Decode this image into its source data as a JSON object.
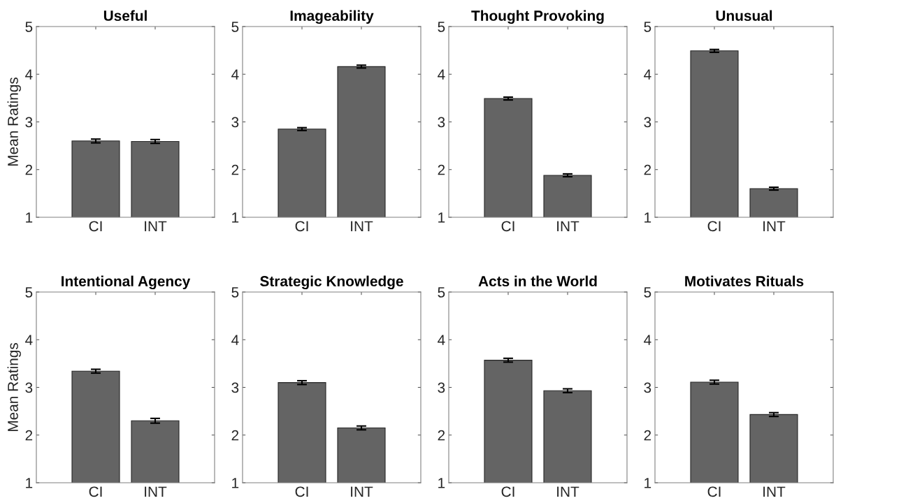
{
  "chart_data": [
    {
      "type": "bar",
      "title": "Useful",
      "ylabel": "Mean Ratings",
      "categories": [
        "CI",
        "INT"
      ],
      "values": [
        2.6,
        2.59
      ],
      "errors": [
        0.04,
        0.04
      ],
      "color": "#646464",
      "ylim": [
        1,
        5
      ],
      "yticks": [
        1,
        2,
        3,
        4,
        5
      ],
      "grid": false
    },
    {
      "type": "bar",
      "title": "Imageability",
      "categories": [
        "CI",
        "INT"
      ],
      "values": [
        2.85,
        4.16
      ],
      "errors": [
        0.03,
        0.03
      ],
      "color": "#646464",
      "ylim": [
        1,
        5
      ],
      "yticks": [
        1,
        2,
        3,
        4,
        5
      ],
      "grid": false
    },
    {
      "type": "bar",
      "title": "Thought Provoking",
      "categories": [
        "CI",
        "INT"
      ],
      "values": [
        3.49,
        1.88
      ],
      "errors": [
        0.03,
        0.03
      ],
      "color": "#646464",
      "ylim": [
        1,
        5
      ],
      "yticks": [
        1,
        2,
        3,
        4,
        5
      ],
      "grid": false
    },
    {
      "type": "bar",
      "title": "Unusual",
      "categories": [
        "CI",
        "INT"
      ],
      "values": [
        4.49,
        1.6
      ],
      "errors": [
        0.03,
        0.03
      ],
      "color": "#646464",
      "ylim": [
        1,
        5
      ],
      "yticks": [
        1,
        2,
        3,
        4,
        5
      ],
      "grid": false
    },
    {
      "type": "bar",
      "title": "Intentional Agency",
      "ylabel": "Mean Ratings",
      "categories": [
        "CI",
        "INT"
      ],
      "values": [
        3.34,
        2.3
      ],
      "errors": [
        0.04,
        0.05
      ],
      "color": "#646464",
      "ylim": [
        1,
        5
      ],
      "yticks": [
        1,
        2,
        3,
        4,
        5
      ],
      "grid": false
    },
    {
      "type": "bar",
      "title": "Strategic Knowledge",
      "categories": [
        "CI",
        "INT"
      ],
      "values": [
        3.1,
        2.15
      ],
      "errors": [
        0.04,
        0.04
      ],
      "color": "#646464",
      "ylim": [
        1,
        5
      ],
      "yticks": [
        1,
        2,
        3,
        4,
        5
      ],
      "grid": false
    },
    {
      "type": "bar",
      "title": "Acts in the World",
      "categories": [
        "CI",
        "INT"
      ],
      "values": [
        3.57,
        2.93
      ],
      "errors": [
        0.04,
        0.04
      ],
      "color": "#646464",
      "ylim": [
        1,
        5
      ],
      "yticks": [
        1,
        2,
        3,
        4,
        5
      ],
      "grid": false
    },
    {
      "type": "bar",
      "title": "Motivates Rituals",
      "categories": [
        "CI",
        "INT"
      ],
      "values": [
        3.11,
        2.43
      ],
      "errors": [
        0.04,
        0.04
      ],
      "color": "#646464",
      "ylim": [
        1,
        5
      ],
      "yticks": [
        1,
        2,
        3,
        4,
        5
      ],
      "grid": false
    }
  ]
}
